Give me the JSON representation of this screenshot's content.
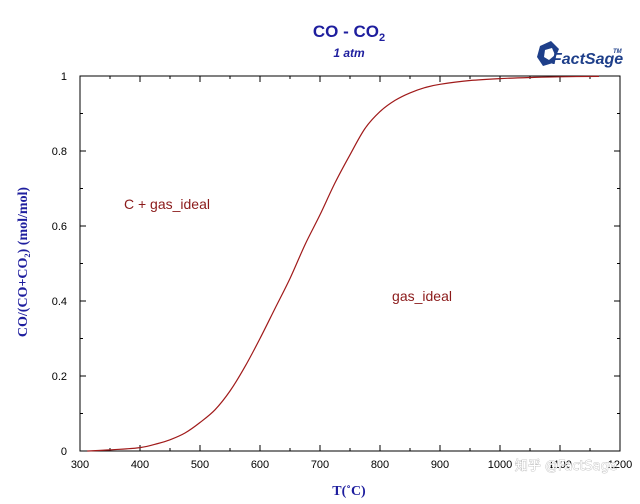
{
  "chart_data": {
    "type": "line",
    "title": "CO - CO",
    "title_subscript": "2",
    "subtitle": "1 atm",
    "xlabel": "T(˚C)",
    "ylabel": "CO/(CO+CO₂) (mol/mol)",
    "xlim": [
      300,
      1200
    ],
    "ylim": [
      0,
      1
    ],
    "x_ticks": [
      "300",
      "400",
      "500",
      "600",
      "700",
      "800",
      "900",
      "1000",
      "1100",
      "1200"
    ],
    "y_ticks": [
      "0",
      "0.2",
      "0.4",
      "0.6",
      "0.8",
      "1"
    ],
    "grid": false,
    "series": [
      {
        "color": "#a01a1a",
        "x": [
          312,
          350,
          400,
          430,
          450,
          475,
          500,
          525,
          550,
          575,
          600,
          625,
          650,
          675,
          700,
          725,
          750,
          775,
          800,
          825,
          850,
          875,
          900,
          950,
          1000,
          1050,
          1100,
          1165
        ],
        "y": [
          0.0,
          0.003,
          0.009,
          0.02,
          0.03,
          0.048,
          0.076,
          0.11,
          0.16,
          0.225,
          0.3,
          0.38,
          0.46,
          0.55,
          0.63,
          0.715,
          0.79,
          0.86,
          0.905,
          0.935,
          0.955,
          0.969,
          0.978,
          0.988,
          0.993,
          0.996,
          0.998,
          0.999
        ]
      }
    ],
    "annotations": [
      {
        "text": "C + gas_ideal",
        "x": 445,
        "y": 0.645
      },
      {
        "text": "gas_ideal",
        "x": 870,
        "y": 0.4
      }
    ]
  },
  "logo": {
    "text": "FactSage",
    "tm": "TM"
  },
  "watermark": "知乎 @FactSage"
}
